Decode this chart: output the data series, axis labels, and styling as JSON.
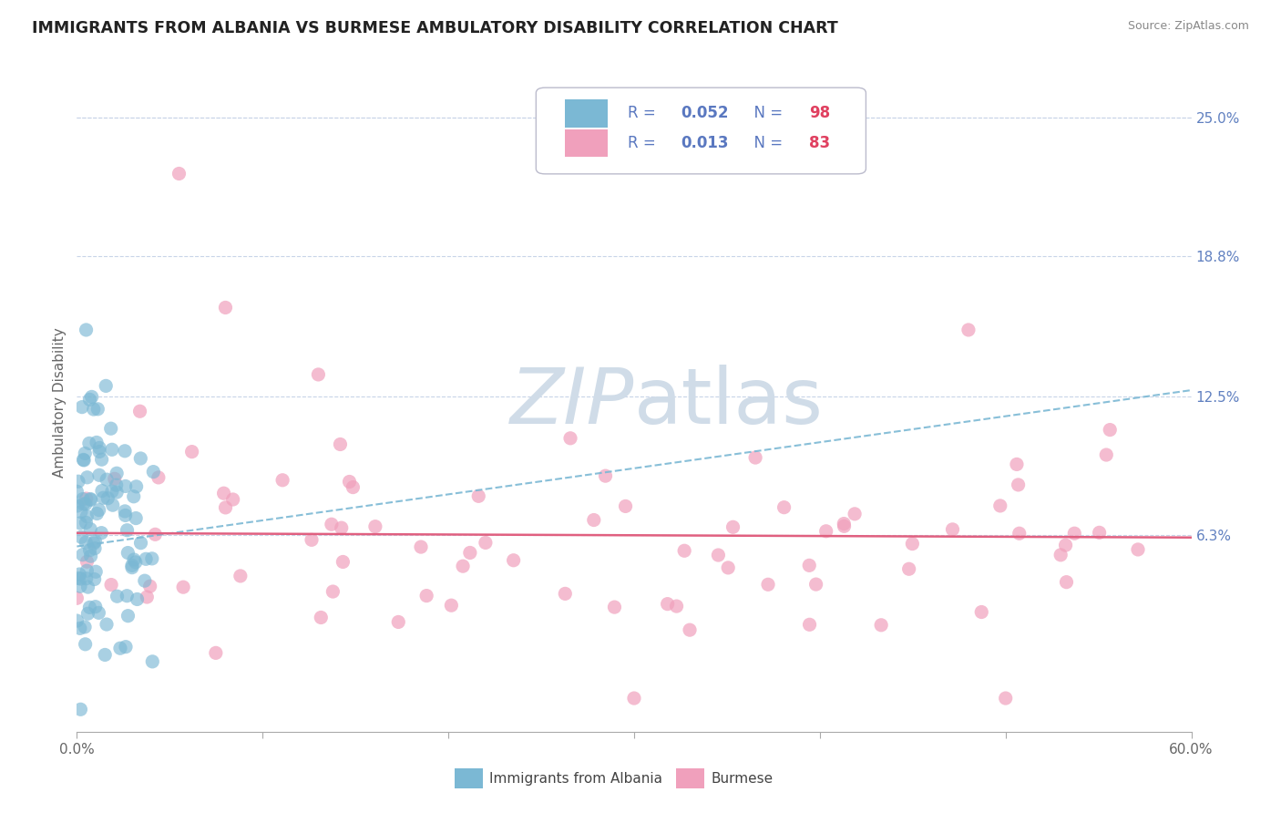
{
  "title": "IMMIGRANTS FROM ALBANIA VS BURMESE AMBULATORY DISABILITY CORRELATION CHART",
  "source": "Source: ZipAtlas.com",
  "ylabel": "Ambulatory Disability",
  "xlim": [
    0.0,
    0.6
  ],
  "ylim": [
    -0.025,
    0.27
  ],
  "ytick_positions": [
    0.063,
    0.125,
    0.188,
    0.25
  ],
  "ytick_labels": [
    "6.3%",
    "12.5%",
    "18.8%",
    "25.0%"
  ],
  "series1_name": "Immigrants from Albania",
  "series1_R": 0.052,
  "series1_N": 98,
  "series1_color": "#7bb8d4",
  "series1_trend_color": "#7bb8d4",
  "series2_name": "Burmese",
  "series2_R": 0.013,
  "series2_N": 83,
  "series2_color": "#f0a0bc",
  "series2_trend_color": "#e06080",
  "background_color": "#ffffff",
  "grid_color": "#c8d4e8",
  "watermark_color": "#d0dce8",
  "title_color": "#222222",
  "ylabel_color": "#666666",
  "right_tick_color": "#6080c0",
  "legend_R_color": "#5a78c0",
  "legend_N_color": "#e04060",
  "xtick_color": "#666666",
  "trend1_start_y": 0.058,
  "trend1_end_y": 0.128,
  "trend2_start_y": 0.064,
  "trend2_end_y": 0.062
}
